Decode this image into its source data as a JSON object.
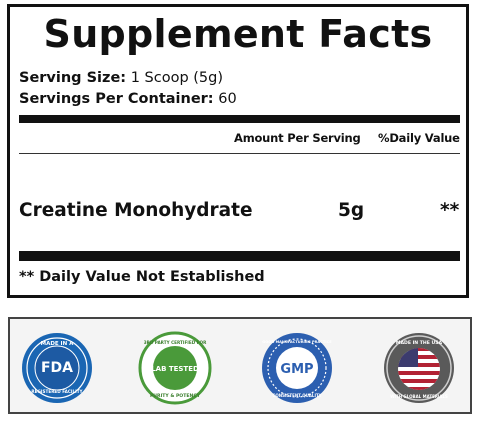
{
  "panel": {
    "title": "Supplement Facts",
    "serving_size_label": "Serving Size:",
    "serving_size_value": " 1 Scoop (5g)",
    "servings_label": "Servings Per Container:",
    "servings_value": " 60",
    "col_amount": "Amount Per Serving",
    "col_dv": "%Daily Value",
    "ingredient": {
      "name": "Creatine Monohydrate",
      "amount": "5g",
      "daily_value": "**"
    },
    "footnote": "** Daily Value Not Established"
  },
  "badges": [
    {
      "name": "fda-badge",
      "top_text": "MADE IN A",
      "center_text": "FDA",
      "sub_text": "REGISTERED FACILITY",
      "color": "#1a66b3"
    },
    {
      "name": "lab-tested-badge",
      "top_text": "3RD PARTY CERTIFIED FOR",
      "center_text": "LAB TESTED",
      "sub_text": "PURITY & POTENCY",
      "color": "#4a9a3a"
    },
    {
      "name": "gmp-badge",
      "top_text": "GOOD MANUFACTURING PRACTICE",
      "center_text": "GMP",
      "sub_text": "CONSISTENT QUALITY",
      "color": "#2c5fb0"
    },
    {
      "name": "usa-badge",
      "top_text": "MADE IN THE USA",
      "center_text": "",
      "sub_text": "WITH GLOBAL MATERIALS",
      "color": "#b22234"
    }
  ],
  "colors": {
    "text": "#111111",
    "border": "#111111",
    "badge_strip_bg": "#f4f4f4"
  }
}
